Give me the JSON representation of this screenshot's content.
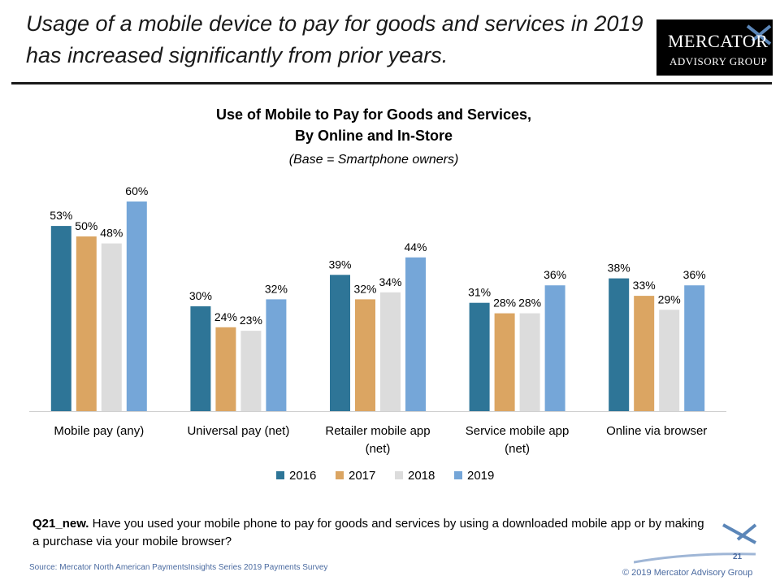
{
  "headline": "Usage of a mobile device to pay for goods and services in 2019 has increased significantly from prior years.",
  "logo": {
    "line1": "MERCATOR",
    "line2": "ADVISORY GROUP"
  },
  "question": {
    "label": "Q21_new.",
    "text": "Have you used your mobile phone to pay for goods and services by using a downloaded mobile app or by making a purchase via your mobile browser?"
  },
  "source": "Source:  Mercator North American PaymentsInsights Series 2019 Payments Survey",
  "page_number": "21",
  "copyright": "© 2019 Mercator Advisory Group",
  "colors": {
    "2016": "#2e7597",
    "2017": "#dba562",
    "2018": "#dcdcdc",
    "2019": "#75a6d8"
  },
  "chart_data": {
    "type": "bar",
    "title_line1": "Use of Mobile to Pay for Goods and Services,",
    "title_line2": "By Online and In-Store",
    "subtitle": "(Base = Smartphone owners)",
    "categories": [
      [
        "Mobile pay (any)"
      ],
      [
        "Universal pay (net)"
      ],
      [
        "Retailer mobile app",
        "(net)"
      ],
      [
        "Service mobile app",
        "(net)"
      ],
      [
        "Online via browser"
      ]
    ],
    "series": [
      {
        "name": "2016",
        "values": [
          53,
          30,
          39,
          31,
          38
        ]
      },
      {
        "name": "2017",
        "values": [
          50,
          24,
          32,
          28,
          33
        ]
      },
      {
        "name": "2018",
        "values": [
          48,
          23,
          34,
          28,
          29
        ]
      },
      {
        "name": "2019",
        "values": [
          60,
          32,
          44,
          36,
          36
        ]
      }
    ],
    "value_suffix": "%",
    "ylim": [
      0,
      60
    ],
    "grid": false,
    "legend_position": "bottom"
  }
}
